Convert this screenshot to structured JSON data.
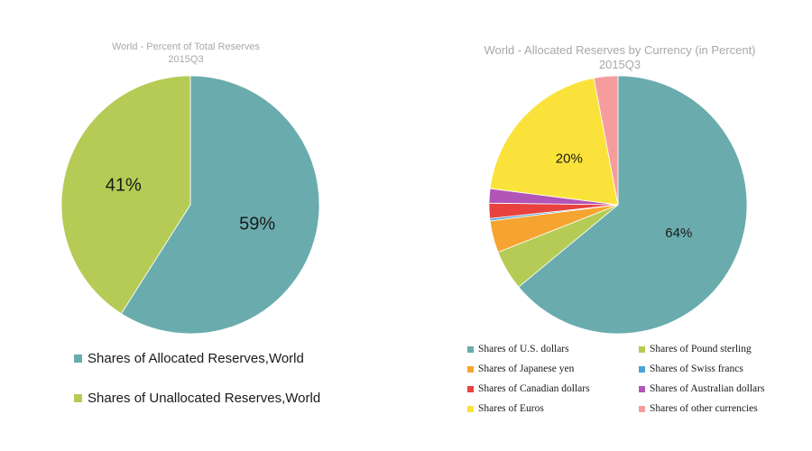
{
  "chart_data": [
    {
      "type": "pie",
      "title": "World - Percent of Total Reserves",
      "subtitle": "2015Q3",
      "categories": [
        "Shares of Allocated Reserves,World",
        "Shares of Unallocated Reserves,World"
      ],
      "values": [
        59,
        41
      ],
      "data_labels": [
        "59%",
        "41%"
      ],
      "colors": [
        "#6aacad",
        "#b5cb55"
      ],
      "legend_position": "bottom"
    },
    {
      "type": "pie",
      "title": "World - Allocated Reserves by Currency (in Percent)",
      "subtitle": "2015Q3",
      "categories": [
        "Shares of U.S. dollars",
        "Shares of Pound sterling",
        "Shares of Japanese yen",
        "Shares of Swiss francs",
        "Shares of Canadian dollars",
        "Shares of Australian dollars",
        "Shares of Euros",
        "Shares of other currencies"
      ],
      "values": [
        64,
        5,
        4,
        0.3,
        1.9,
        1.8,
        20,
        3
      ],
      "data_labels": [
        "64%",
        "",
        "",
        "",
        "",
        "",
        "20%",
        ""
      ],
      "colors": [
        "#6aacad",
        "#b5cb55",
        "#f5a431",
        "#4aa3d6",
        "#e8413e",
        "#b155b8",
        "#fbe23a",
        "#f59d9d"
      ],
      "legend_position": "bottom"
    }
  ]
}
